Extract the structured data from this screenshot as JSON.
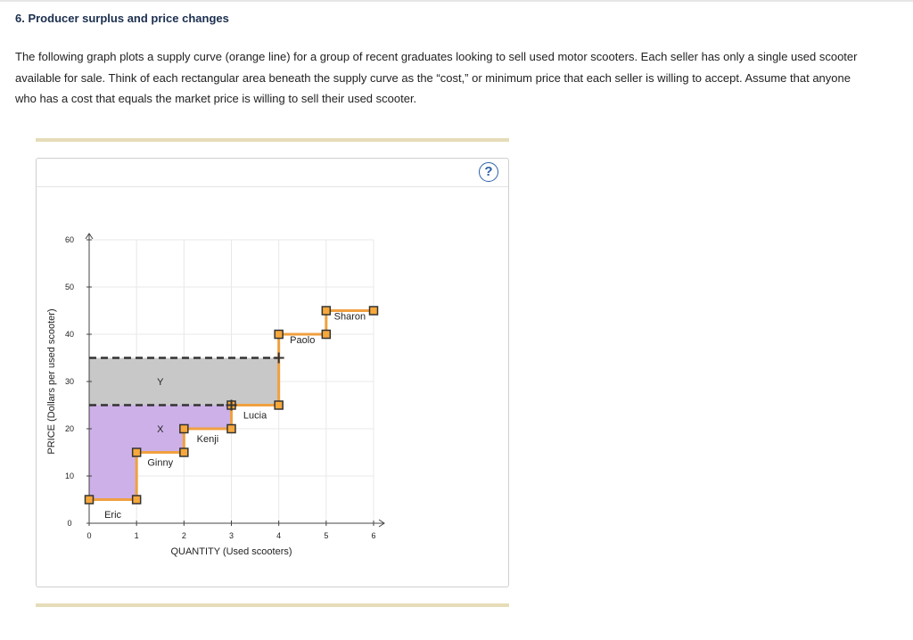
{
  "question": {
    "title": "6. Producer surplus and price changes",
    "text": "The following graph plots a supply curve (orange line) for a group of recent graduates looking to sell used motor scooters. Each seller has only a single used scooter available for sale. Think of each rectangular area beneath the supply curve as the “cost,” or minimum price that each seller is willing to accept. Assume that anyone who has a cost that equals the market price is willing to sell their used scooter."
  },
  "help_label": "?",
  "colors": {
    "supply_line": "#f0a040",
    "marker_fill": "#f7a83c",
    "marker_stroke": "#333333",
    "surplus_x_fill": "#cdb0e8",
    "surplus_y_fill": "#c8c8c8",
    "price_line": "#333333",
    "grid": "#e8e8e8",
    "rule": "#e6dcb8",
    "help_icon": "#2b5fa8"
  },
  "chart_data": {
    "type": "line",
    "step": true,
    "xlabel": "QUANTITY (Used scooters)",
    "ylabel": "PRICE (Dollars per used scooter)",
    "xlim": [
      0,
      6
    ],
    "ylim": [
      0,
      60
    ],
    "x_ticks": [
      0,
      1,
      2,
      3,
      4,
      5,
      6
    ],
    "y_ticks": [
      0,
      10,
      20,
      30,
      40,
      50,
      60
    ],
    "grid": true,
    "series": [
      {
        "name": "Supply",
        "points": [
          [
            0,
            5
          ],
          [
            1,
            5
          ],
          [
            1,
            15
          ],
          [
            2,
            15
          ],
          [
            2,
            20
          ],
          [
            3,
            20
          ],
          [
            3,
            25
          ],
          [
            4,
            25
          ],
          [
            4,
            40
          ],
          [
            5,
            40
          ],
          [
            5,
            45
          ],
          [
            6,
            45
          ]
        ]
      }
    ],
    "seller_labels": [
      {
        "text": "Eric",
        "x": 0.5,
        "y": 0
      },
      {
        "text": "Ginny",
        "x": 1.5,
        "y": 11
      },
      {
        "text": "Kenji",
        "x": 2.5,
        "y": 16
      },
      {
        "text": "Lucia",
        "x": 3.5,
        "y": 21
      },
      {
        "text": "Paolo",
        "x": 4.5,
        "y": 37
      },
      {
        "text": "Sharon",
        "x": 5.5,
        "y": 42
      }
    ],
    "price_lines": [
      {
        "price": 25,
        "x_end": 3
      },
      {
        "price": 35,
        "x_end": 4
      }
    ],
    "price_markers": [
      {
        "x": 3,
        "y": 25
      },
      {
        "x": 4,
        "y": 35
      }
    ],
    "areas": [
      {
        "label": "X",
        "label_at": [
          1.5,
          20
        ],
        "polygon": [
          [
            0,
            5
          ],
          [
            1,
            5
          ],
          [
            1,
            15
          ],
          [
            2,
            15
          ],
          [
            2,
            20
          ],
          [
            3,
            20
          ],
          [
            3,
            25
          ],
          [
            0,
            25
          ]
        ]
      },
      {
        "label": "Y",
        "label_at": [
          1.5,
          30
        ],
        "polygon": [
          [
            0,
            25
          ],
          [
            3,
            25
          ],
          [
            3,
            25
          ],
          [
            4,
            25
          ],
          [
            4,
            35
          ],
          [
            0,
            35
          ]
        ]
      }
    ]
  }
}
